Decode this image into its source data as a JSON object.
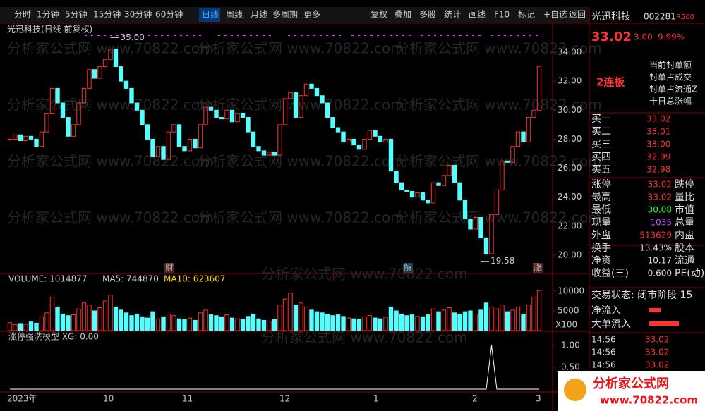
{
  "toolbar": {
    "left": [
      "分时",
      "1分钟",
      "5分钟",
      "15分钟",
      "30分钟",
      "60分钟",
      "日线",
      "周线",
      "月线",
      "多周期",
      "更多"
    ],
    "right": [
      "复权",
      "叠加",
      "多股",
      "统计",
      "画线",
      "F10",
      "标记",
      "+自选",
      "返回"
    ]
  },
  "chart": {
    "title": "光迅科技(日线 前复权)",
    "price_ticks": [
      {
        "value": 34,
        "label": "34.00"
      },
      {
        "value": 32,
        "label": "32.00"
      },
      {
        "value": 30,
        "label": "30.00"
      },
      {
        "value": 28,
        "label": "28.00"
      },
      {
        "value": 26,
        "label": "26.00"
      },
      {
        "value": 24,
        "label": "24.00"
      },
      {
        "value": 22,
        "label": "22.00"
      },
      {
        "value": 20,
        "label": "20.00"
      }
    ],
    "closes": [
      28.0,
      28.3,
      27.9,
      28.2,
      28.0,
      27.5,
      28.5,
      29.8,
      31.5,
      30.5,
      29.5,
      28.2,
      29.0,
      30.5,
      31.5,
      32.8,
      32.2,
      33.0,
      33.5,
      34.2,
      33.0,
      32.0,
      31.5,
      30.5,
      30.0,
      29.0,
      28.0,
      26.8,
      27.5,
      26.6,
      28.5,
      29.0,
      27.5,
      27.2,
      28.0,
      27.4,
      29.0,
      30.2,
      30.0,
      29.5,
      29.4,
      30.0,
      29.2,
      29.8,
      29.5,
      28.5,
      27.5,
      27.2,
      26.9,
      27.1,
      26.9,
      29.0,
      30.8,
      31.2,
      29.5,
      31.0,
      31.8,
      31.5,
      31.0,
      30.5,
      29.5,
      28.8,
      28.5,
      27.8,
      28.0,
      27.6,
      27.3,
      28.0,
      28.6,
      28.2,
      27.8,
      28.0,
      25.8,
      25.0,
      24.5,
      24.4,
      24.0,
      24.3,
      23.8,
      23.6,
      25.0,
      24.8,
      25.5,
      26.2,
      25.0,
      23.8,
      22.5,
      21.8,
      22.6,
      21.2,
      20.1,
      22.8,
      24.5,
      26.5,
      26.4,
      27.5,
      28.5,
      27.8,
      29.5,
      30.0,
      33.02
    ],
    "high_label": "35.00",
    "high_value": 35,
    "low_label": "19.58",
    "low_value": 19.58,
    "events": [
      "财",
      "解",
      "涨"
    ],
    "volume_header": [
      "VOLUME: 1014877",
      "MA5: 744870",
      "MA10: 623607"
    ],
    "volume_ticks": [
      10000,
      5000
    ],
    "volume_unit": "X100",
    "volumes": [
      2000,
      1500,
      1800,
      1600,
      2200,
      1900,
      3500,
      4500,
      8500,
      6000,
      4200,
      3800,
      4000,
      5500,
      7000,
      6500,
      5000,
      5800,
      7500,
      9000,
      6000,
      5200,
      4500,
      3800,
      4200,
      3500,
      3200,
      4800,
      3000,
      3500,
      4200,
      3800,
      3000,
      2800,
      3200,
      2600,
      4500,
      5200,
      4000,
      3800,
      3500,
      4000,
      3200,
      3000,
      2800,
      3600,
      4200,
      3000,
      2600,
      2400,
      2800,
      6500,
      8000,
      9500,
      6500,
      7000,
      6000,
      5200,
      4800,
      4500,
      4200,
      3800,
      4000,
      3600,
      3200,
      3000,
      2800,
      3500,
      3800,
      3200,
      3000,
      3400,
      6000,
      5000,
      4200,
      3800,
      4000,
      3600,
      3500,
      4000,
      5500,
      4800,
      5200,
      5800,
      4500,
      4200,
      4800,
      5000,
      4200,
      5200,
      7000,
      6000,
      5500,
      6500,
      4800,
      5200,
      6000,
      4200,
      6500,
      8500,
      10149
    ],
    "indicator_header": "涨停强洗模型 XG: 0.00",
    "indicator_ticks": [
      {
        "value": 1,
        "label": "1.00"
      },
      {
        "value": 0.5,
        "label": "0.50"
      }
    ],
    "xg": [
      0,
      0,
      0,
      0,
      0,
      0,
      0,
      0,
      0,
      0,
      0,
      0,
      0,
      0,
      0,
      0,
      0,
      0,
      0,
      0,
      0,
      0,
      0,
      0,
      0,
      0,
      0,
      0,
      0,
      0,
      0,
      0,
      0,
      0,
      0,
      0,
      0,
      0,
      0,
      0,
      0,
      0,
      0,
      0,
      0,
      0,
      0,
      0,
      0,
      0,
      0,
      0,
      0,
      0,
      0,
      0,
      0,
      0,
      0,
      0,
      0,
      0,
      0,
      0,
      0,
      0,
      0,
      0,
      0,
      0,
      0,
      0,
      0,
      0,
      0,
      0,
      0,
      0,
      0,
      0,
      0,
      0,
      0,
      0,
      0,
      0,
      0,
      0,
      0,
      0,
      0,
      1,
      0,
      0,
      0,
      0,
      0,
      0,
      0,
      0,
      0
    ],
    "x_labels": [
      "2023年",
      "10",
      "11",
      "12",
      "1",
      "2",
      "3"
    ],
    "watermark": "分析家公式网 www.70822.com"
  },
  "quote": {
    "name": "光迅科技",
    "code": "002281",
    "tag": "R500",
    "price": "33.02",
    "change": "3.00",
    "pct": "9.99%",
    "streak": "2连板",
    "seal": [
      "当前封单额",
      "封单占成交",
      "封单占流通Z",
      "十日总涨幅"
    ],
    "book": [
      [
        "买一",
        "33.02"
      ],
      [
        "买二",
        "33.01"
      ],
      [
        "买三",
        "33.00"
      ],
      [
        "买四",
        "32.99"
      ],
      [
        "买五",
        "32.98"
      ]
    ],
    "stats": [
      [
        "涨停",
        "33.02",
        "跌停"
      ],
      [
        "最高",
        "33.02",
        "量比"
      ],
      [
        "最低",
        "30.08",
        "市值"
      ],
      [
        "现量",
        "1035",
        "总量"
      ],
      [
        "外盘",
        "513629",
        "内盘"
      ],
      [
        "换手",
        "13.43%",
        "股本"
      ],
      [
        "净资",
        "10.17",
        "流通"
      ],
      [
        "收益(三)",
        "0.600",
        "PE(动)"
      ]
    ],
    "status": "交易状态: 闭市阶段 15",
    "flows": [
      "净流入",
      "大单流入"
    ],
    "ticks": [
      [
        "14:56",
        "33.02"
      ],
      [
        "14:56",
        "33.02"
      ],
      [
        "14:56",
        "33.02"
      ]
    ]
  },
  "logo": {
    "name": "分析家公式网",
    "url": "www.70822.com"
  }
}
